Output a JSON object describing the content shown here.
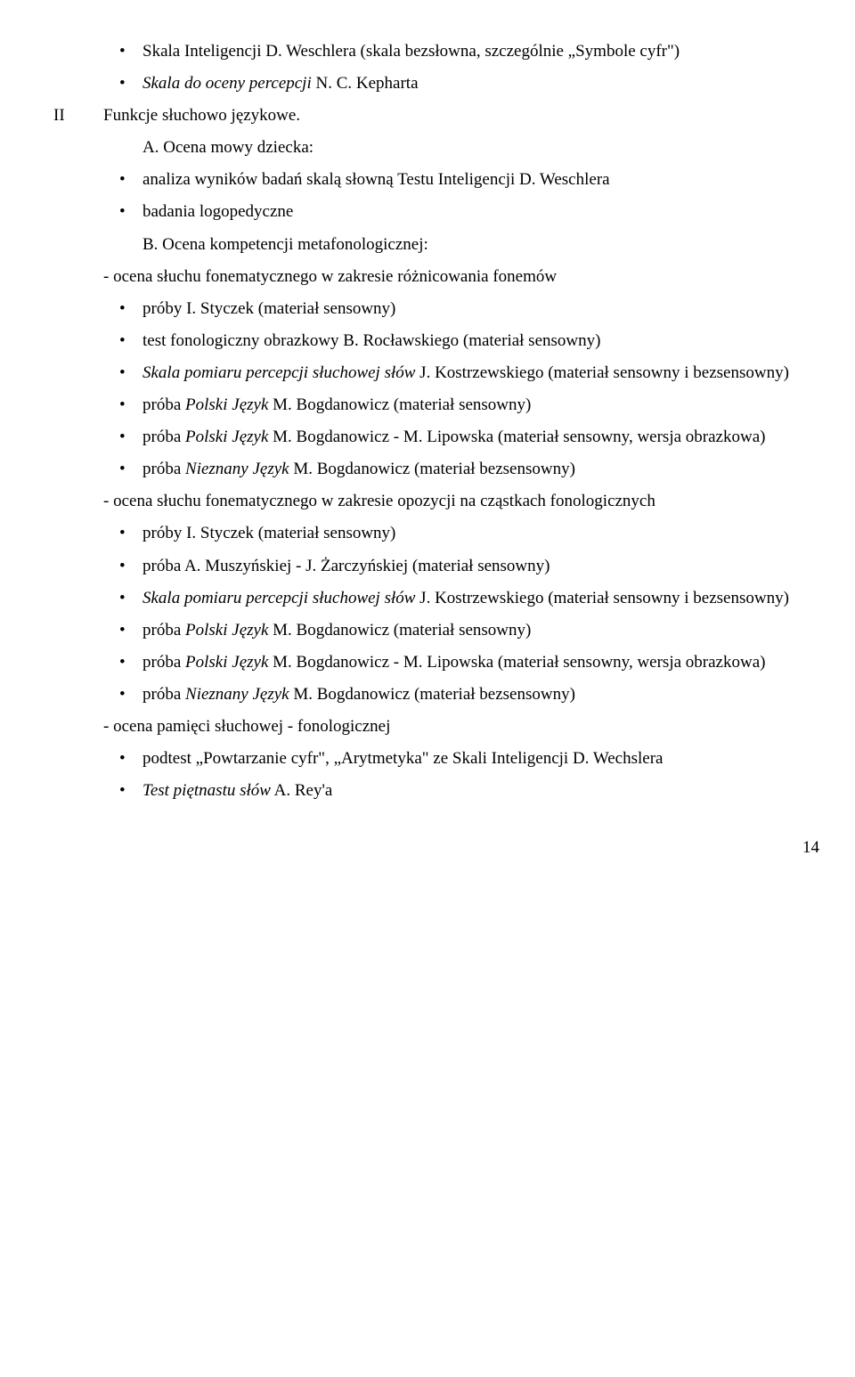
{
  "b1_a": "Skala Inteligencji D. Weschlera (skala bezsłowna, szczególnie „Symbole cyfr\")",
  "b1_b_pre": "Skala do oceny percepcji",
  "b1_b_post": " N. C. Kepharta",
  "roman": "II",
  "sec2_title": "Funkcje słuchowo językowe.",
  "A_label": "A. Ocena mowy dziecka:",
  "A_b1": "analiza wyników badań skalą słowną Testu Inteligencji D. Weschlera",
  "A_b2": "badania logopedyczne",
  "B_label": "B. Ocena kompetencji metafonologicznej:",
  "B_dash1": "- ocena słuchu fonematycznego w zakresie różnicowania fonemów",
  "B1_b1": "próby I. Styczek (materiał sensowny)",
  "B1_b2": "test fonologiczny obrazkowy B. Rocławskiego (materiał sensowny)",
  "B1_b3_pre": "Skala pomiaru percepcji słuchowej słów",
  "B1_b3_post": " J. Kostrzewskiego (materiał sensowny i bezsensowny)",
  "B1_b4_pre": "próba ",
  "B1_b4_it": "Polski Język",
  "B1_b4_post": " M. Bogdanowicz (materiał sensowny)",
  "B1_b5_pre": "próba ",
  "B1_b5_it": "Polski Język",
  "B1_b5_post": " M. Bogdanowicz - M. Lipowska (materiał sensowny, wersja obrazkowa)",
  "B1_b6_pre": "próba ",
  "B1_b6_it": "Nieznany Język",
  "B1_b6_post": " M. Bogdanowicz (materiał bezsensowny)",
  "B_dash2": "- ocena słuchu fonematycznego w zakresie opozycji na cząstkach fonologicznych",
  "B2_b1": "próby I. Styczek (materiał sensowny)",
  "B2_b2": "próba A. Muszyńskiej - J. Żarczyńskiej (materiał sensowny)",
  "B2_b3_pre": "Skala pomiaru percepcji słuchowej słów",
  "B2_b3_post": " J. Kostrzewskiego (materiał sensowny i bezsensowny)",
  "B2_b4_pre": "próba ",
  "B2_b4_it": "Polski Język",
  "B2_b4_post": " M. Bogdanowicz (materiał sensowny)",
  "B2_b5_pre": "próba ",
  "B2_b5_it": "Polski Język",
  "B2_b5_post": " M. Bogdanowicz - M. Lipowska (materiał sensowny, wersja obrazkowa)",
  "B2_b6_pre": "próba ",
  "B2_b6_it": "Nieznany Język",
  "B2_b6_post": " M. Bogdanowicz (materiał bezsensowny)",
  "B_dash3": "- ocena pamięci słuchowej - fonologicznej",
  "B3_b1": "podtest „Powtarzanie cyfr\", „Arytmetyka\" ze Skali Inteligencji D. Wechslera",
  "B3_b2_pre": "Test piętnastu słów",
  "B3_b2_post": " A. Rey'a",
  "page_number": "14"
}
